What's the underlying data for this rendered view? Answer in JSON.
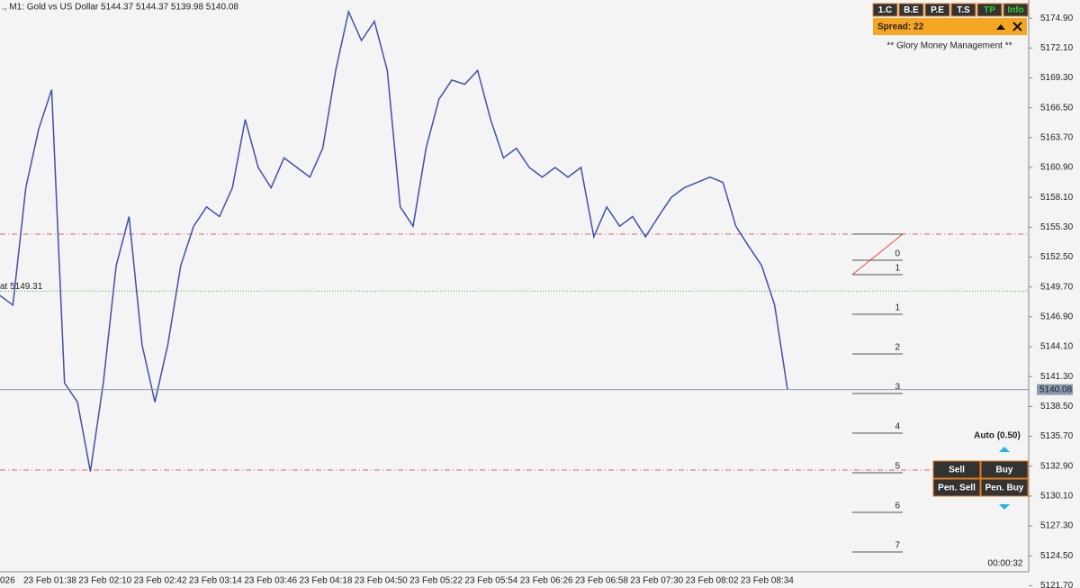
{
  "header": {
    "title": "., M1:  Gold vs US Dollar  5144.37 5144.37 5139.98 5140.08"
  },
  "chart_data": {
    "type": "line",
    "color": "#3f51a8",
    "values": [
      5148.9,
      5148.0,
      5159.0,
      5164.5,
      5168.2,
      5140.7,
      5138.9,
      5132.4,
      5140.7,
      5151.7,
      5156.3,
      5144.3,
      5138.9,
      5144.3,
      5151.7,
      5155.4,
      5157.2,
      5156.3,
      5159.0,
      5165.4,
      5160.9,
      5159.0,
      5161.8,
      5160.9,
      5160.0,
      5162.7,
      5170.0,
      5175.5,
      5172.8,
      5174.6,
      5170.0,
      5157.2,
      5155.4,
      5162.7,
      5167.3,
      5169.1,
      5168.7,
      5170.0,
      5165.4,
      5161.8,
      5162.7,
      5160.9,
      5160.0,
      5160.9,
      5160.0,
      5160.9,
      5154.4,
      5157.2,
      5155.4,
      5156.3,
      5154.4,
      5156.3,
      5158.1,
      5159.0,
      5159.5,
      5160.0,
      5159.5,
      5155.4,
      5153.5,
      5151.7,
      5148.0,
      5140.08
    ],
    "ylim": [
      5123.0,
      5176.6
    ],
    "yticks": [
      {
        "value": 5174.9,
        "label": "5174.90"
      },
      {
        "value": 5172.1,
        "label": "5172.10"
      },
      {
        "value": 5169.3,
        "label": "5169.30"
      },
      {
        "value": 5166.5,
        "label": "5166.50"
      },
      {
        "value": 5163.7,
        "label": "5163.70"
      },
      {
        "value": 5160.9,
        "label": "5160.90"
      },
      {
        "value": 5158.1,
        "label": "5158.10"
      },
      {
        "value": 5155.3,
        "label": "5155.30"
      },
      {
        "value": 5152.5,
        "label": "5152.50"
      },
      {
        "value": 5149.7,
        "label": "5149.70"
      },
      {
        "value": 5146.9,
        "label": "5146.90"
      },
      {
        "value": 5144.1,
        "label": "5144.10"
      },
      {
        "value": 5141.3,
        "label": "5141.30"
      },
      {
        "value": 5138.5,
        "label": "5138.50"
      },
      {
        "value": 5135.7,
        "label": "5135.70"
      },
      {
        "value": 5132.9,
        "label": "5132.90"
      },
      {
        "value": 5130.1,
        "label": "5130.10"
      },
      {
        "value": 5127.3,
        "label": "5127.30"
      },
      {
        "value": 5124.5,
        "label": "5124.50"
      },
      {
        "value": 5121.7,
        "label": "5121.70"
      }
    ],
    "xticks": [
      "026",
      "23 Feb 01:38",
      "23 Feb 02:10",
      "23 Feb 02:42",
      "23 Feb 03:14",
      "23 Feb 03:46",
      "23 Feb 04:18",
      "23 Feb 04:50",
      "23 Feb 05:22",
      "23 Feb 05:54",
      "23 Feb 06:26",
      "23 Feb 06:58",
      "23 Feb 07:30",
      "23 Feb 08:02",
      "23 Feb 08:34"
    ],
    "current_price": {
      "value": 5140.08,
      "label": "5140.08"
    },
    "entry_line": {
      "value": 5149.31,
      "label": "at 5149.31"
    }
  },
  "panel": {
    "buttons": [
      "1.C",
      "B.E",
      "P.E",
      "T.S",
      "TP",
      "Info"
    ],
    "spread": "Spread: 22",
    "name": "**  Glory Money Management  **",
    "levels": [
      "0",
      "1",
      "1",
      "2",
      "3",
      "4",
      "5",
      "6",
      "7"
    ],
    "lot": "Auto (0.50)",
    "trade_buttons": [
      "Sell",
      "Buy",
      "Pen. Sell",
      "Pen. Buy"
    ],
    "timer": "00:00:32"
  }
}
